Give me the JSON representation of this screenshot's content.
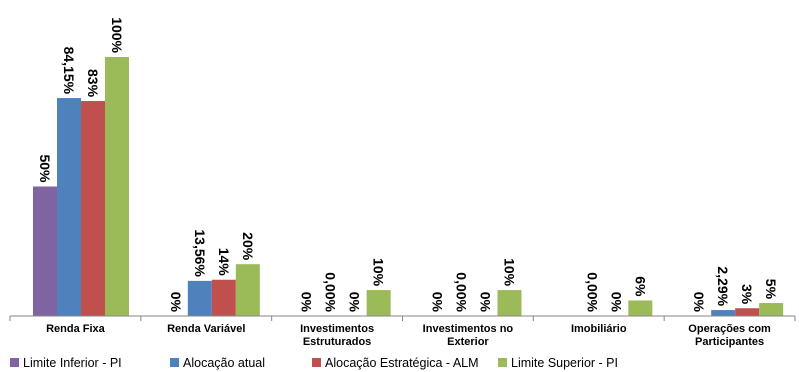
{
  "chart_data": {
    "type": "bar",
    "categories": [
      [
        "Renda Fixa"
      ],
      [
        "Renda Variável"
      ],
      [
        "Investimentos",
        "Estruturados"
      ],
      [
        "Investimentos no",
        "Exterior"
      ],
      [
        "Imobiliário"
      ],
      [
        "Operações com",
        "Participantes"
      ]
    ],
    "series": [
      {
        "name": "Limite Inferior - PI",
        "color": "#8064A2",
        "values": [
          50,
          0,
          0,
          0,
          null,
          0
        ],
        "labels": [
          "50%",
          "0%",
          "0%",
          "0%",
          null,
          "0%"
        ]
      },
      {
        "name": "Alocação atual",
        "color": "#4F81BD",
        "values": [
          84.15,
          13.56,
          0.0,
          0.0,
          0.0,
          2.29
        ],
        "labels": [
          "84,15%",
          "13,56%",
          "0,00%",
          "0,00%",
          "0,00%",
          "2,29%"
        ]
      },
      {
        "name": "Alocação Estratégica - ALM",
        "color": "#C0504D",
        "values": [
          83,
          14,
          0,
          0,
          0,
          3
        ],
        "labels": [
          "83%",
          "14%",
          "0%",
          "0%",
          "0%",
          "3%"
        ]
      },
      {
        "name": "Limite Superior - PI",
        "color": "#9BBB59",
        "values": [
          100,
          20,
          10,
          10,
          6,
          5
        ],
        "labels": [
          "100%",
          "20%",
          "10%",
          "10%",
          "6%",
          "5%"
        ]
      }
    ],
    "ylim": [
      0,
      100
    ],
    "grid": false,
    "legend_position": "bottom"
  }
}
